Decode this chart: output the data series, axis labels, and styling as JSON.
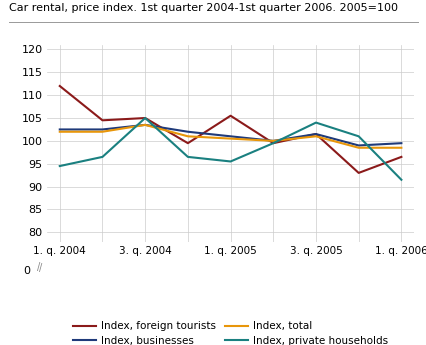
{
  "title": "Car rental, price index. 1st quarter 2004-1st quarter 2006. 2005=100",
  "x_tick_labels": [
    "1. q. 2004",
    "",
    "3. q. 2004",
    "",
    "1. q. 2005",
    "",
    "3. q. 2005",
    "",
    "1. q. 2006"
  ],
  "foreign_tourists": [
    112,
    104.5,
    105,
    99.5,
    105.5,
    99.5,
    101.5,
    93,
    96.5
  ],
  "businesses": [
    102.5,
    102.5,
    103.5,
    102,
    101,
    100,
    101.5,
    99,
    99.5
  ],
  "total": [
    102,
    102,
    103.5,
    101,
    100.5,
    100,
    101,
    98.5,
    98.5
  ],
  "private_households": [
    94.5,
    96.5,
    105,
    96.5,
    95.5,
    99.5,
    104,
    101,
    91.5
  ],
  "color_foreign_tourists": "#8B1A1A",
  "color_businesses": "#1F3A7A",
  "color_total": "#E8960A",
  "color_private_households": "#1A8080",
  "ylim": [
    78,
    121
  ],
  "yticks": [
    80,
    85,
    90,
    95,
    100,
    105,
    110,
    115,
    120
  ],
  "background_color": "#ffffff",
  "grid_color": "#cccccc",
  "legend_labels": [
    "Index, foreign tourists",
    "Index, businesses",
    "Index, total",
    "Index, private households"
  ]
}
